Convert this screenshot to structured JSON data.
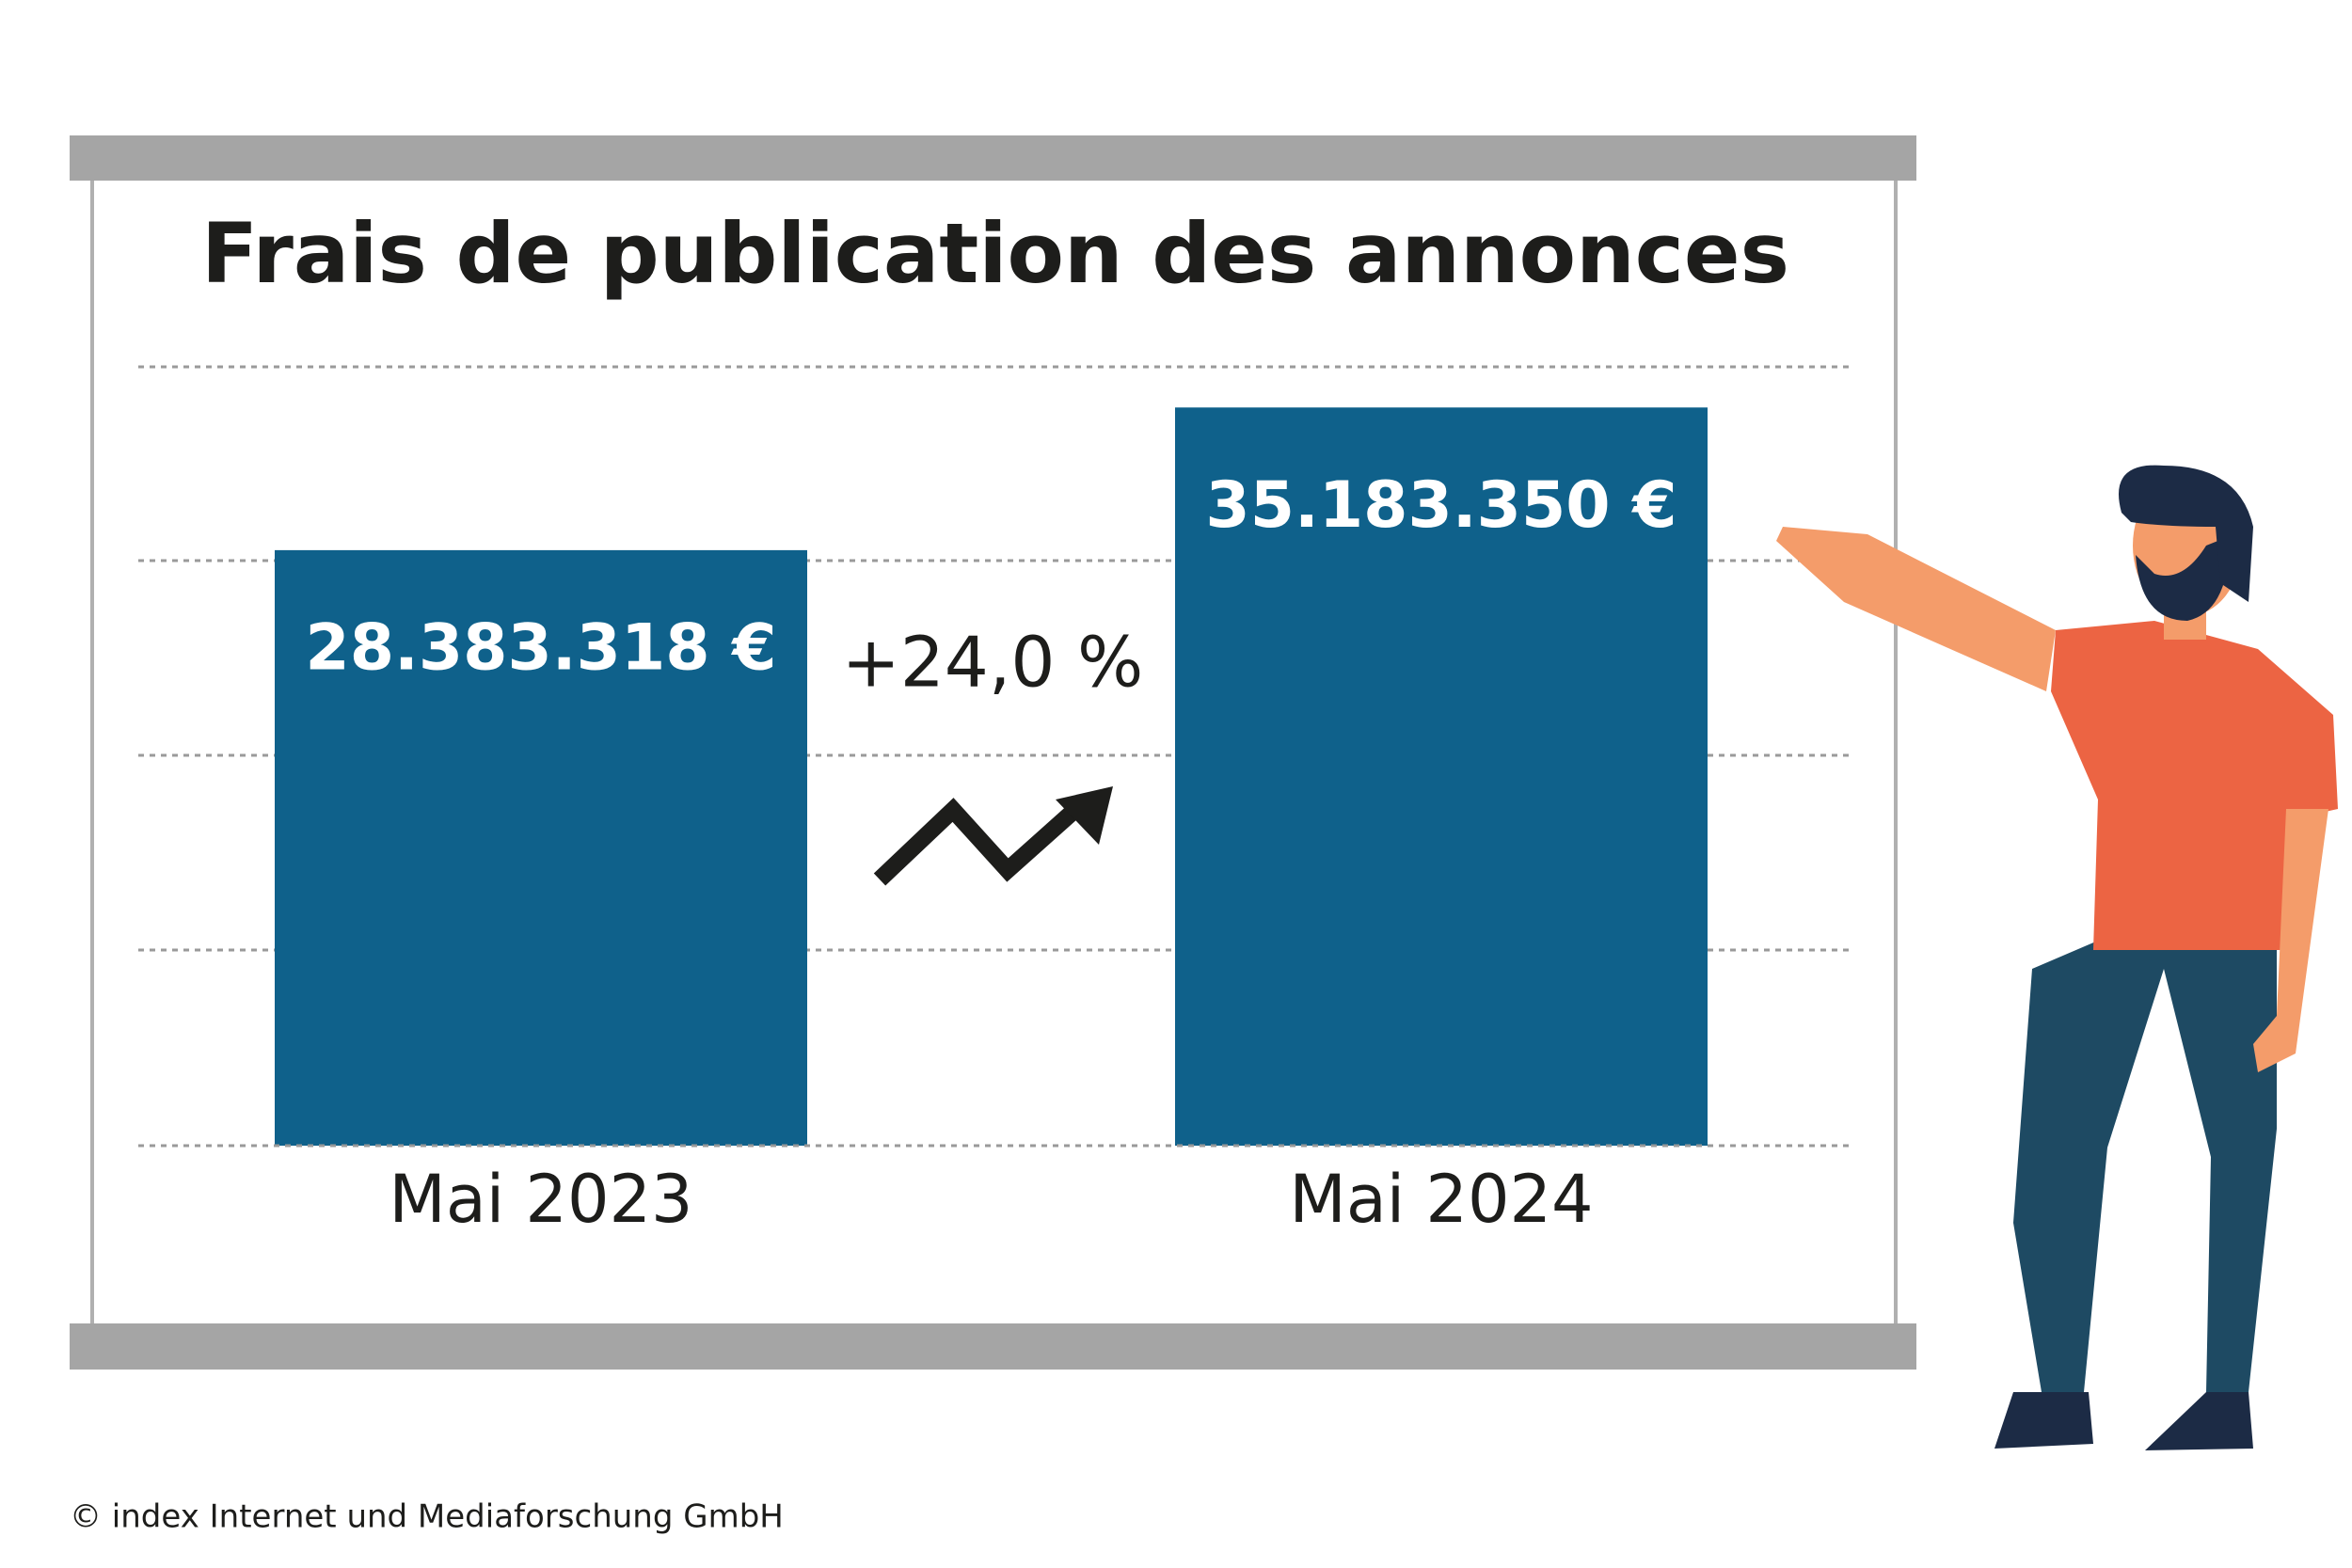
{
  "chart_data": {
    "type": "bar",
    "title": "Frais de publication des annonces",
    "categories": [
      "Mai 2023",
      "Mai 2024"
    ],
    "values": [
      28383318,
      35183350
    ],
    "value_labels": [
      "28.383.318 €",
      "35.183.350 €"
    ],
    "color": "#0f618b",
    "ylim": [
      0,
      36000000
    ],
    "annotation": "+24,0 %",
    "source": "© index Internet und Mediaforschung GmbH"
  }
}
